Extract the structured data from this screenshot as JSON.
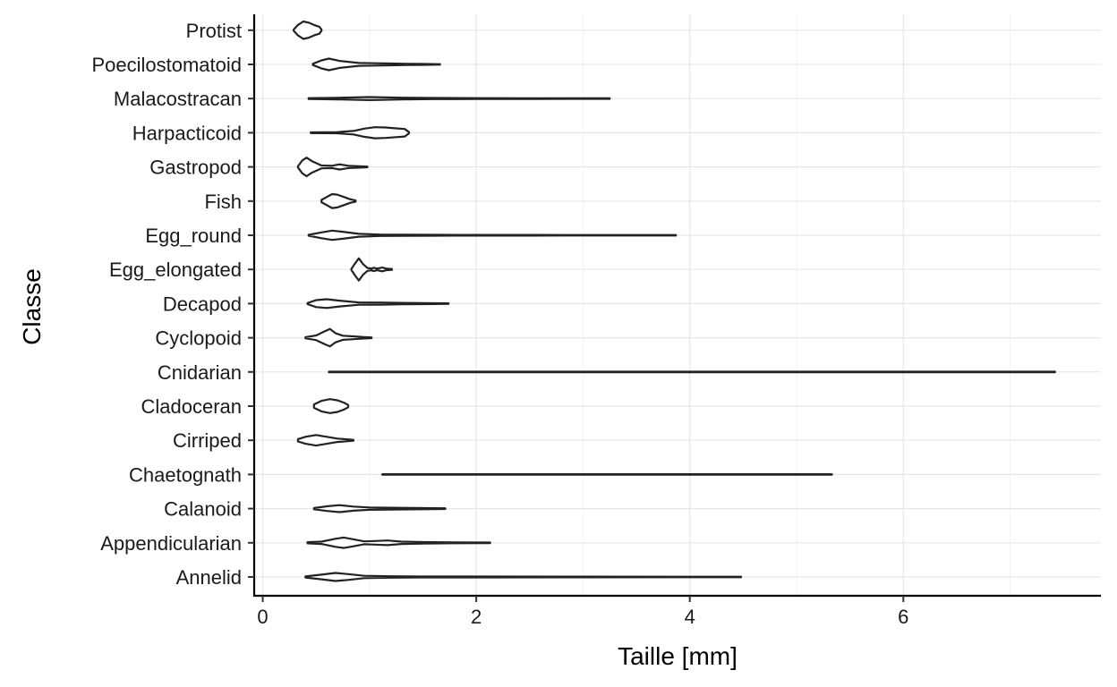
{
  "chart_data": {
    "type": "violin",
    "orientation": "horizontal",
    "xlabel": "Taille  [mm]",
    "ylabel": "Classe",
    "xlim": [
      -0.08,
      7.85
    ],
    "xticks": [
      0,
      2,
      4,
      6
    ],
    "grid": true,
    "legend": "none",
    "colors": {
      "outline": "#222222",
      "grid_major": "#e6e6e6",
      "grid_minor": "#f2f2f2",
      "frame": "#000000"
    },
    "categories": [
      "Protist",
      "Poecilostomatoid",
      "Malacostracan",
      "Harpacticoid",
      "Gastropod",
      "Fish",
      "Egg_round",
      "Egg_elongated",
      "Decapod",
      "Cyclopoid",
      "Cnidarian",
      "Cladoceran",
      "Cirriped",
      "Chaetognath",
      "Calanoid",
      "Appendicularian",
      "Annelid"
    ],
    "violins": [
      {
        "name": "Protist",
        "min": 0.29,
        "max": 0.55,
        "profile": [
          [
            0.29,
            0.05
          ],
          [
            0.33,
            0.45
          ],
          [
            0.38,
            0.75
          ],
          [
            0.43,
            0.65
          ],
          [
            0.48,
            0.45
          ],
          [
            0.53,
            0.3
          ],
          [
            0.55,
            0.05
          ]
        ]
      },
      {
        "name": "Poecilostomatoid",
        "min": 0.47,
        "max": 1.66,
        "profile": [
          [
            0.47,
            0.05
          ],
          [
            0.55,
            0.35
          ],
          [
            0.62,
            0.5
          ],
          [
            0.72,
            0.3
          ],
          [
            0.9,
            0.12
          ],
          [
            1.05,
            0.1
          ],
          [
            1.2,
            0.08
          ],
          [
            1.35,
            0.05
          ],
          [
            1.5,
            0.04
          ],
          [
            1.66,
            0.02
          ]
        ]
      },
      {
        "name": "Malacostracan",
        "min": 0.43,
        "max": 3.25,
        "profile": [
          [
            0.43,
            0.04
          ],
          [
            0.7,
            0.07
          ],
          [
            1.0,
            0.13
          ],
          [
            1.3,
            0.08
          ],
          [
            1.6,
            0.05
          ],
          [
            2.0,
            0.04
          ],
          [
            2.5,
            0.03
          ],
          [
            3.0,
            0.02
          ],
          [
            3.25,
            0.02
          ]
        ]
      },
      {
        "name": "Harpacticoid",
        "min": 0.45,
        "max": 1.37,
        "profile": [
          [
            0.45,
            0.03
          ],
          [
            0.7,
            0.05
          ],
          [
            0.85,
            0.15
          ],
          [
            0.95,
            0.35
          ],
          [
            1.05,
            0.48
          ],
          [
            1.15,
            0.45
          ],
          [
            1.25,
            0.38
          ],
          [
            1.33,
            0.32
          ],
          [
            1.37,
            0.05
          ]
        ]
      },
      {
        "name": "Gastropod",
        "min": 0.33,
        "max": 0.98,
        "profile": [
          [
            0.33,
            0.05
          ],
          [
            0.37,
            0.55
          ],
          [
            0.41,
            0.8
          ],
          [
            0.46,
            0.5
          ],
          [
            0.55,
            0.12
          ],
          [
            0.65,
            0.1
          ],
          [
            0.72,
            0.22
          ],
          [
            0.8,
            0.1
          ],
          [
            0.9,
            0.06
          ],
          [
            0.98,
            0.03
          ]
        ]
      },
      {
        "name": "Fish",
        "min": 0.55,
        "max": 0.87,
        "profile": [
          [
            0.55,
            0.1
          ],
          [
            0.6,
            0.35
          ],
          [
            0.65,
            0.6
          ],
          [
            0.7,
            0.55
          ],
          [
            0.76,
            0.35
          ],
          [
            0.82,
            0.15
          ],
          [
            0.87,
            0.05
          ]
        ]
      },
      {
        "name": "Egg_round",
        "min": 0.43,
        "max": 3.87,
        "profile": [
          [
            0.43,
            0.04
          ],
          [
            0.55,
            0.25
          ],
          [
            0.65,
            0.4
          ],
          [
            0.75,
            0.3
          ],
          [
            0.9,
            0.12
          ],
          [
            1.1,
            0.06
          ],
          [
            1.3,
            0.05
          ],
          [
            1.6,
            0.04
          ],
          [
            1.8,
            0.03
          ],
          [
            2.5,
            0.03
          ],
          [
            3.0,
            0.02
          ],
          [
            3.87,
            0.02
          ]
        ]
      },
      {
        "name": "Egg_elongated",
        "min": 0.83,
        "max": 1.21,
        "profile": [
          [
            0.83,
            0.05
          ],
          [
            0.86,
            0.45
          ],
          [
            0.9,
            0.95
          ],
          [
            0.94,
            0.45
          ],
          [
            0.98,
            0.12
          ],
          [
            1.02,
            0.08
          ],
          [
            1.04,
            0.15
          ],
          [
            1.07,
            0.07
          ],
          [
            1.12,
            0.16
          ],
          [
            1.16,
            0.06
          ],
          [
            1.21,
            0.04
          ]
        ]
      },
      {
        "name": "Decapod",
        "min": 0.42,
        "max": 1.74,
        "profile": [
          [
            0.42,
            0.05
          ],
          [
            0.5,
            0.3
          ],
          [
            0.6,
            0.38
          ],
          [
            0.72,
            0.25
          ],
          [
            0.9,
            0.1
          ],
          [
            1.1,
            0.09
          ],
          [
            1.3,
            0.06
          ],
          [
            1.5,
            0.05
          ],
          [
            1.74,
            0.02
          ]
        ]
      },
      {
        "name": "Cyclopoid",
        "min": 0.4,
        "max": 1.02,
        "profile": [
          [
            0.4,
            0.05
          ],
          [
            0.5,
            0.2
          ],
          [
            0.58,
            0.55
          ],
          [
            0.63,
            0.75
          ],
          [
            0.68,
            0.4
          ],
          [
            0.75,
            0.18
          ],
          [
            0.85,
            0.12
          ],
          [
            0.95,
            0.06
          ],
          [
            1.02,
            0.03
          ]
        ]
      },
      {
        "name": "Cnidarian",
        "min": 0.62,
        "max": 7.42,
        "profile": [
          [
            0.62,
            0.02
          ],
          [
            3.0,
            0.025
          ],
          [
            5.0,
            0.02
          ],
          [
            7.42,
            0.02
          ]
        ]
      },
      {
        "name": "Cladoceran",
        "min": 0.48,
        "max": 0.8,
        "profile": [
          [
            0.48,
            0.15
          ],
          [
            0.55,
            0.45
          ],
          [
            0.63,
            0.6
          ],
          [
            0.7,
            0.5
          ],
          [
            0.76,
            0.3
          ],
          [
            0.8,
            0.1
          ]
        ]
      },
      {
        "name": "Cirriped",
        "min": 0.33,
        "max": 0.85,
        "profile": [
          [
            0.33,
            0.1
          ],
          [
            0.4,
            0.3
          ],
          [
            0.5,
            0.45
          ],
          [
            0.6,
            0.3
          ],
          [
            0.7,
            0.15
          ],
          [
            0.8,
            0.08
          ],
          [
            0.85,
            0.04
          ]
        ]
      },
      {
        "name": "Chaetognath",
        "min": 1.12,
        "max": 5.33,
        "profile": [
          [
            1.12,
            0.02
          ],
          [
            2.5,
            0.025
          ],
          [
            4.0,
            0.025
          ],
          [
            5.33,
            0.02
          ]
        ]
      },
      {
        "name": "Calanoid",
        "min": 0.48,
        "max": 1.71,
        "profile": [
          [
            0.48,
            0.05
          ],
          [
            0.6,
            0.2
          ],
          [
            0.72,
            0.3
          ],
          [
            0.85,
            0.18
          ],
          [
            1.0,
            0.1
          ],
          [
            1.2,
            0.08
          ],
          [
            1.4,
            0.06
          ],
          [
            1.6,
            0.04
          ],
          [
            1.71,
            0.03
          ]
        ]
      },
      {
        "name": "Appendicularian",
        "min": 0.42,
        "max": 2.13,
        "profile": [
          [
            0.42,
            0.05
          ],
          [
            0.55,
            0.1
          ],
          [
            0.68,
            0.35
          ],
          [
            0.76,
            0.45
          ],
          [
            0.85,
            0.3
          ],
          [
            0.95,
            0.12
          ],
          [
            1.05,
            0.15
          ],
          [
            1.17,
            0.2
          ],
          [
            1.3,
            0.1
          ],
          [
            1.5,
            0.06
          ],
          [
            1.8,
            0.04
          ],
          [
            2.13,
            0.02
          ]
        ]
      },
      {
        "name": "Annelid",
        "min": 0.4,
        "max": 4.48,
        "profile": [
          [
            0.4,
            0.05
          ],
          [
            0.55,
            0.2
          ],
          [
            0.68,
            0.35
          ],
          [
            0.8,
            0.25
          ],
          [
            0.95,
            0.1
          ],
          [
            1.2,
            0.06
          ],
          [
            1.5,
            0.04
          ],
          [
            2.0,
            0.04
          ],
          [
            3.0,
            0.03
          ],
          [
            4.0,
            0.02
          ],
          [
            4.48,
            0.02
          ]
        ]
      }
    ]
  }
}
